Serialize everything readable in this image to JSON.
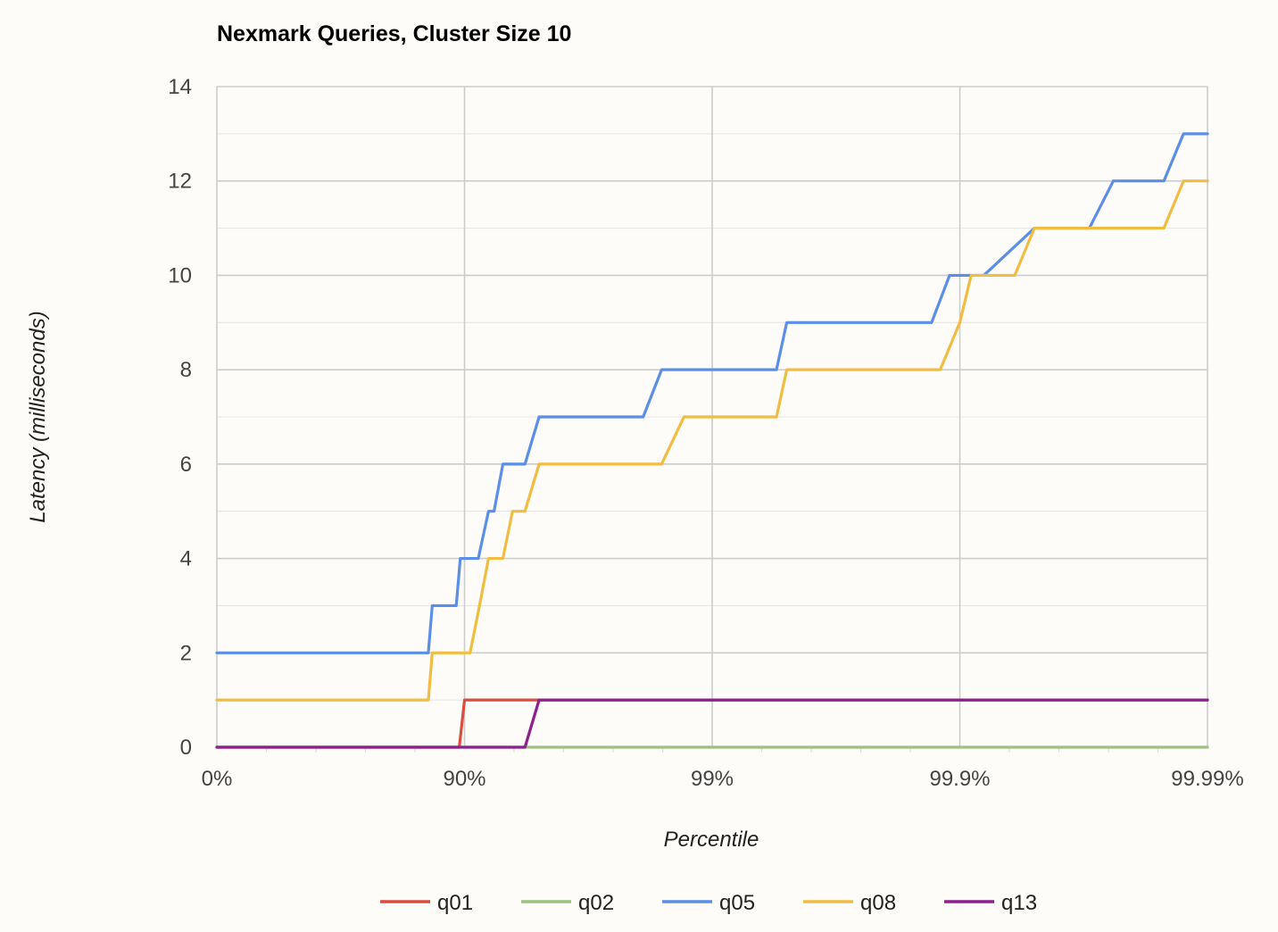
{
  "chart_data": {
    "type": "line",
    "title": "Nexmark Queries, Cluster Size 10",
    "xlabel": "Percentile",
    "ylabel": "Latency (milliseconds)",
    "x_scale": "percentile-log",
    "x_ticks": [
      "0%",
      "90%",
      "99%",
      "99.9%",
      "99.99%"
    ],
    "x_range": [
      "0%",
      "99.99%"
    ],
    "y_ticks": [
      0,
      2,
      4,
      6,
      8,
      10,
      12,
      14
    ],
    "ylim": [
      0,
      14
    ],
    "grid": true,
    "legend_position": "bottom",
    "series": [
      {
        "name": "q01",
        "color": "#db4c3f",
        "x": [
          "0%",
          "89.5%",
          "90%",
          "99.99%"
        ],
        "y": [
          0,
          0,
          1,
          1
        ]
      },
      {
        "name": "q02",
        "color": "#9bc27f",
        "x": [
          "0%",
          "99.99%"
        ],
        "y": [
          0,
          0
        ]
      },
      {
        "name": "q05",
        "color": "#5b8ee6",
        "x": [
          "0%",
          "86%",
          "86.5%",
          "89.2%",
          "89.6%",
          "91.2%",
          "92%",
          "92.4%",
          "93%",
          "94.3%",
          "95%",
          "98.1%",
          "98.4%",
          "99.45%",
          "99.5%",
          "99.87%",
          "99.89%",
          "99.92%",
          "99.95%",
          "99.97%",
          "99.976%",
          "99.985%",
          "99.9875%",
          "99.99%"
        ],
        "y": [
          2,
          2,
          3,
          3,
          4,
          4,
          5,
          5,
          6,
          6,
          7,
          7,
          8,
          8,
          9,
          9,
          10,
          10,
          11,
          11,
          12,
          12,
          13,
          13
        ]
      },
      {
        "name": "q08",
        "color": "#f0bd42",
        "x": [
          "0%",
          "86%",
          "86.5%",
          "90.5%",
          "91.3%",
          "92%",
          "93%",
          "93.6%",
          "94.3%",
          "95%",
          "98.4%",
          "98.7%",
          "99.45%",
          "99.5%",
          "99.88%",
          "99.9%",
          "99.91%",
          "99.94%",
          "99.95%",
          "99.985%",
          "99.9875%",
          "99.99%"
        ],
        "y": [
          1,
          1,
          2,
          2,
          3,
          4,
          4,
          5,
          5,
          6,
          6,
          7,
          7,
          8,
          8,
          9,
          10,
          10,
          11,
          11,
          12,
          12
        ]
      },
      {
        "name": "q13",
        "color": "#8e1f8e",
        "x": [
          "0%",
          "94.3%",
          "95%",
          "99.99%"
        ],
        "y": [
          0,
          0,
          1,
          1
        ]
      }
    ]
  }
}
